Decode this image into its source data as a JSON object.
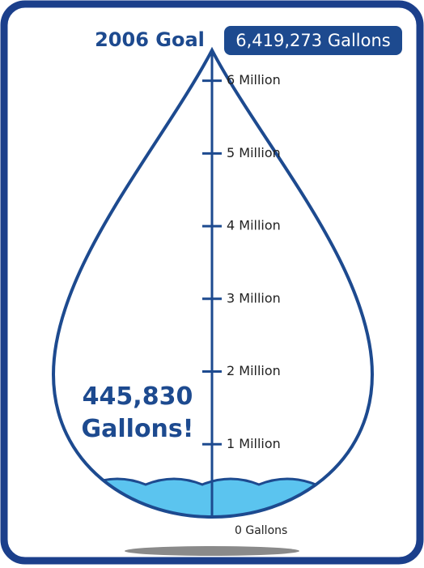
{
  "chart_data": {
    "type": "drop-gauge",
    "title": "2006 Goal",
    "goal": {
      "value": 6419273,
      "label": "6,419,273 Gallons"
    },
    "current": {
      "value": 445830,
      "label": "445,830 Gallons!"
    },
    "ylim": [
      0,
      6419273
    ],
    "yticks": [
      {
        "value": 0,
        "label": "0 Gallons"
      },
      {
        "value": 1000000,
        "label": "1 Million"
      },
      {
        "value": 2000000,
        "label": "2 Million"
      },
      {
        "value": 3000000,
        "label": "3 Million"
      },
      {
        "value": 4000000,
        "label": "4 Million"
      },
      {
        "value": 5000000,
        "label": "5 Million"
      },
      {
        "value": 6000000,
        "label": "6 Million"
      }
    ],
    "color": "#5bc4ef",
    "outline_color": "#1d4a8f"
  }
}
